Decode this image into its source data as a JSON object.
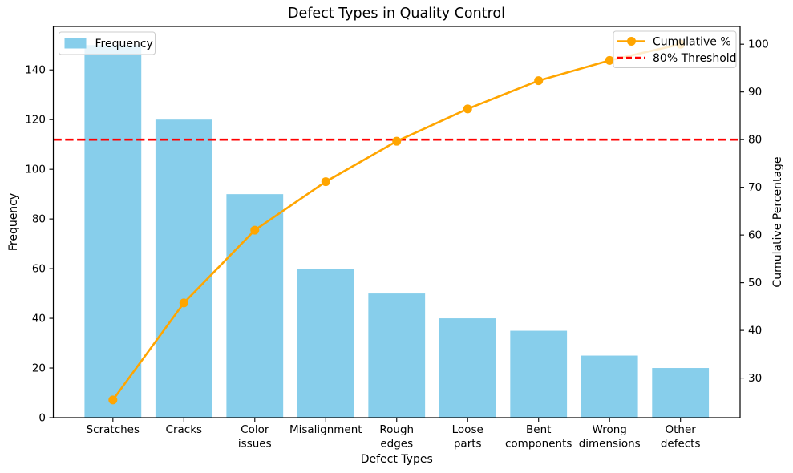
{
  "chart_data": {
    "type": "bar",
    "subtype": "pareto-combo",
    "title": "Defect Types in Quality Control",
    "categories": [
      "Scratches",
      "Cracks",
      "Color issues",
      "Misalignment",
      "Rough edges",
      "Loose parts",
      "Bent components",
      "Wrong dimensions",
      "Other defects"
    ],
    "x_tick_label_lines": [
      [
        "Scratches"
      ],
      [
        "Cracks"
      ],
      [
        "Color",
        "issues"
      ],
      [
        "Misalignment"
      ],
      [
        "Rough",
        "edges"
      ],
      [
        "Loose",
        "parts"
      ],
      [
        "Bent",
        "components"
      ],
      [
        "Wrong",
        "dimensions"
      ],
      [
        "Other",
        "defects"
      ]
    ],
    "series": [
      {
        "name": "Frequency",
        "plot": "bar",
        "axis": "left",
        "color": "#87CEEB",
        "values": [
          150,
          120,
          90,
          60,
          50,
          40,
          35,
          25,
          20
        ]
      },
      {
        "name": "Cumulative %",
        "plot": "line",
        "axis": "right",
        "color": "#FFA500",
        "marker": "circle",
        "values": [
          25.42,
          45.76,
          61.02,
          71.19,
          79.66,
          86.44,
          92.37,
          96.61,
          100.0
        ]
      }
    ],
    "threshold_line": {
      "label": "80% Threshold",
      "value": 80,
      "axis": "right",
      "color": "#FF0000",
      "linestyle": "dashed"
    },
    "axes": {
      "left": {
        "label": "Frequency",
        "ticks": [
          0,
          20,
          40,
          60,
          80,
          100,
          120,
          140
        ],
        "range": [
          0,
          157.5
        ]
      },
      "right": {
        "label": "Cumulative Percentage",
        "ticks": [
          30,
          40,
          50,
          60,
          70,
          80,
          90,
          100
        ],
        "range": [
          21.695,
          103.729
        ]
      },
      "x": {
        "label": "Defect Types",
        "range": [
          -0.84,
          8.84
        ],
        "bar_width": 0.8
      }
    },
    "legend": {
      "bar_legend": {
        "position": "upper left",
        "entries": [
          "Frequency"
        ]
      },
      "line_legend": {
        "position": "upper right",
        "entries": [
          "Cumulative %",
          "80% Threshold"
        ]
      }
    },
    "grid": false,
    "background": "#ffffff",
    "text_color": "#000000",
    "spine_color": "#000000"
  }
}
